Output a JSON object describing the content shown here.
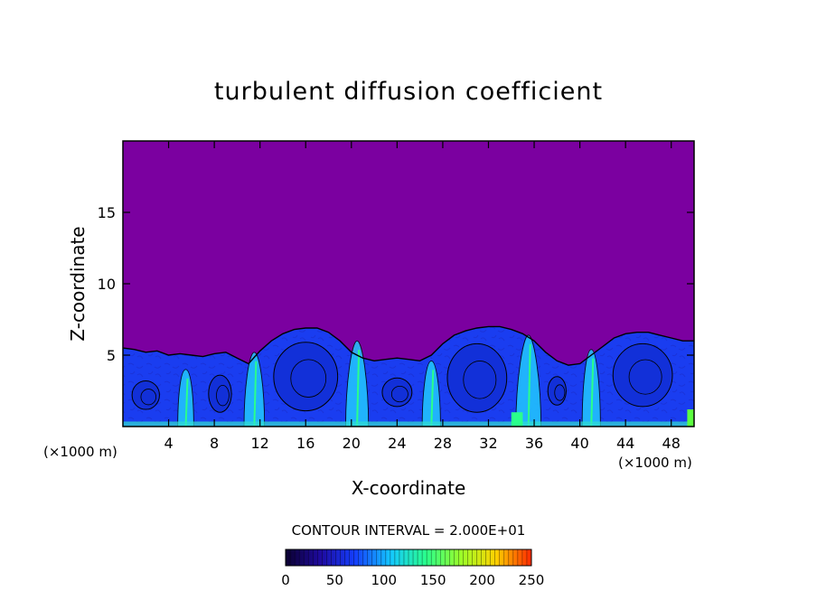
{
  "chart_data": {
    "type": "heatmap",
    "title": "turbulent diffusion coefficient",
    "xlabel": "X-coordinate",
    "ylabel": "Z-coordinate",
    "x_unit_left": "(×1000 m)",
    "x_unit_right": "(×1000 m)",
    "xlim": [
      0,
      50
    ],
    "ylim": [
      0,
      20
    ],
    "x_ticks": [
      4,
      8,
      12,
      16,
      20,
      24,
      28,
      32,
      36,
      40,
      44,
      48
    ],
    "y_ticks": [
      5,
      10,
      15
    ],
    "background_value": 0,
    "background_color": "#7b00a0",
    "boundary_layer_top": [
      [
        0,
        5.5
      ],
      [
        1,
        5.4
      ],
      [
        2,
        5.2
      ],
      [
        3,
        5.3
      ],
      [
        4,
        5.0
      ],
      [
        5,
        5.1
      ],
      [
        6,
        5.0
      ],
      [
        7,
        4.9
      ],
      [
        8,
        5.1
      ],
      [
        9,
        5.2
      ],
      [
        10,
        4.8
      ],
      [
        11,
        4.4
      ],
      [
        12,
        5.3
      ],
      [
        13,
        6.0
      ],
      [
        14,
        6.5
      ],
      [
        15,
        6.8
      ],
      [
        16,
        6.9
      ],
      [
        17,
        6.9
      ],
      [
        18,
        6.6
      ],
      [
        19,
        6.0
      ],
      [
        20,
        5.2
      ],
      [
        21,
        4.8
      ],
      [
        22,
        4.6
      ],
      [
        23,
        4.7
      ],
      [
        24,
        4.8
      ],
      [
        25,
        4.7
      ],
      [
        26,
        4.6
      ],
      [
        27,
        5.0
      ],
      [
        28,
        5.8
      ],
      [
        29,
        6.4
      ],
      [
        30,
        6.7
      ],
      [
        31,
        6.9
      ],
      [
        32,
        7.0
      ],
      [
        33,
        7.0
      ],
      [
        34,
        6.8
      ],
      [
        35,
        6.5
      ],
      [
        36,
        6.0
      ],
      [
        37,
        5.2
      ],
      [
        38,
        4.6
      ],
      [
        39,
        4.3
      ],
      [
        40,
        4.4
      ],
      [
        41,
        5.0
      ],
      [
        42,
        5.6
      ],
      [
        43,
        6.2
      ],
      [
        44,
        6.5
      ],
      [
        45,
        6.6
      ],
      [
        46,
        6.6
      ],
      [
        47,
        6.4
      ],
      [
        48,
        6.2
      ],
      [
        49,
        6.0
      ],
      [
        50,
        6.0
      ]
    ],
    "contour_interval_label": "CONTOUR INTERVAL = 2.000E+01",
    "colorbar": {
      "ticks": [
        "0",
        "50",
        "100",
        "150",
        "200",
        "250"
      ],
      "range": [
        0,
        250
      ],
      "colors": [
        "#0b0030",
        "#1e0aa0",
        "#1440ff",
        "#14c8ff",
        "#2aff8c",
        "#9cff28",
        "#ffd000",
        "#ff2800"
      ]
    }
  }
}
